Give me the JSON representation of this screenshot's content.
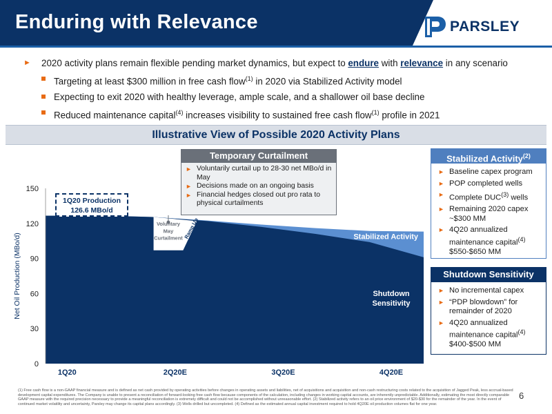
{
  "header": {
    "title": "Enduring with Relevance",
    "logo_text": "PARSLEY"
  },
  "bullets": {
    "main_pre": "2020 activity plans remain flexible pending market dynamics, but expect to ",
    "main_endure": "endure",
    "main_mid": " with ",
    "main_relevance": "relevance",
    "main_post": " in any scenario",
    "sub1_pre": "Targeting at least $300 million in free cash flow",
    "sub1_sup": "(1)",
    "sub1_post": " in 2020 via Stabilized Activity model",
    "sub2": "Expecting to exit 2020 with healthy leverage, ample scale, and a shallower oil base decline",
    "sub3_pre": "Reduced maintenance capital",
    "sub3_sup": "(4)",
    "sub3_mid": " increases visibility to sustained free cash flow",
    "sub3_sup2": "(1)",
    "sub3_post": " profile in 2021"
  },
  "panel": {
    "title": "Illustrative View of Possible 2020 Activity Plans"
  },
  "curtailment": {
    "head": "Temporary Curtailment",
    "items": [
      "Voluntarily curtail up to 28-30 net MBo/d in May",
      "Decisions made on an ongoing basis",
      "Financial hedges closed out pro rata to physical curtailments"
    ]
  },
  "stabilized": {
    "head": "Stabilized Activity",
    "head_sup": "(2)",
    "items": [
      "Baseline capex program",
      "POP completed wells",
      "Complete DUC",
      "Remaining 2020 capex ~$300 MM",
      "4Q20 annualized maintenance capital",
      "$550-$650 MM"
    ],
    "duc_sup": "(3)",
    "duc_post": " wells",
    "maint_sup": "(4)"
  },
  "shutdown": {
    "head": "Shutdown Sensitivity",
    "items": [
      "No incremental capex",
      "“PDP blowdown” for remainder of 2020",
      "4Q20 annualized maintenance capital",
      "$400-$500 MM"
    ],
    "maint_sup": "(4)"
  },
  "production_box": {
    "line1": "1Q20 Production",
    "line2": "126.6 MBo/d"
  },
  "chart_data": {
    "type": "area",
    "ylabel": "Net Oil Production (MBo/d)",
    "ylim": [
      0,
      150
    ],
    "yticks": [
      0,
      30,
      60,
      90,
      120,
      150
    ],
    "categories": [
      "1Q20",
      "2Q20E",
      "3Q20E",
      "4Q20E"
    ],
    "series": [
      {
        "name": "Shutdown Sensitivity",
        "x": [
          0,
          0.55,
          1,
          1.5,
          2,
          2.5,
          3,
          3.5
        ],
        "values": [
          126.6,
          126.6,
          125.5,
          122,
          117,
          111,
          104,
          91
        ]
      },
      {
        "name": "Stabilized Activity",
        "x": [
          0,
          0.55,
          1,
          1.5,
          2,
          2.5,
          3,
          3.5
        ],
        "values": [
          126.6,
          126.6,
          125.5,
          122.5,
          119,
          116,
          113.5,
          113
        ]
      }
    ],
    "annotations": {
      "stabilized_label": "Stabilized Activity",
      "shutdown_label_1": "Shutdown",
      "shutdown_label_2": "Sensitivity",
      "curtail_label_1": "Voluntary",
      "curtail_label_2": "May",
      "curtail_label_3": "Curtailment",
      "ramp_label": "Ramp Up"
    },
    "colors": {
      "shutdown": "#0b3266",
      "stabilized": "#5b8fd1",
      "curtailment": "#ffffff"
    }
  },
  "footnote": "(1) Free cash flow is a non-GAAP financial measure and is defined as net cash provided by operating activities before changes in operating assets and liabilities, net of acquisitions and acquisition and non-cash restructuring costs related to the acquisition of Jagged Peak, less accrual-based development capital expenditures. The Company is unable to present a reconciliation of forward-looking free cash flow because components of the calculation, including changes in working capital accounts, are inherently unpredictable. Additionally, estimating the most directly comparable GAAP measure with the required precision necessary to provide a meaningful reconciliation is extremely difficult and could not be accomplished without unreasonable effort. (2) Stabilized activity refers to an oil price environment of $20-$30 for the remainder of the year. In the event of continued market volatility and uncertainty, Parsley may change its capital plans accordingly. (3) Wells drilled but uncompleted. (4) Defined as the estimated annual capital investment required to hold 4Q20E oil production volumes flat for one year.",
  "page_number": "6"
}
